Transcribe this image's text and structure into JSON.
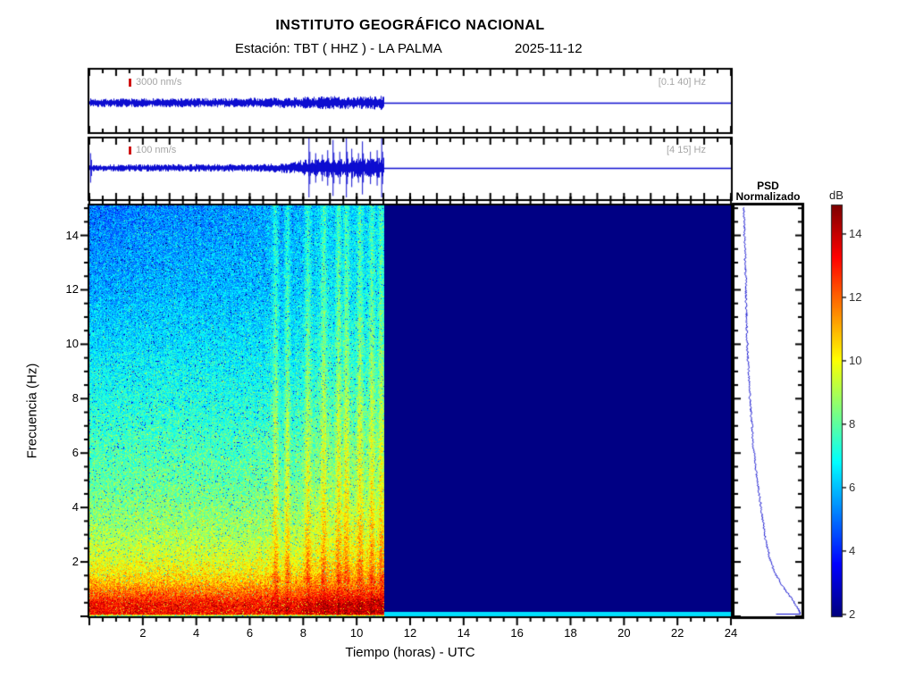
{
  "header": {
    "title": "INSTITUTO GEOGRÁFICO NACIONAL",
    "station": "Estación:  TBT ( HHZ ) - LA PALMA",
    "date": "2025-11-12"
  },
  "colors": {
    "trace": "#0d0dd0",
    "label_gray": "#a6a6a6",
    "marker_red": "#d01414",
    "axis": "#000000",
    "nodata_navy": "#000a8c",
    "background": "#ffffff"
  },
  "chart_data": [
    {
      "id": "waveform_broadband",
      "type": "line",
      "scale_label": "3000 nm/s",
      "filter_label": "[0.1 40] Hz",
      "x_range_hours": [
        0,
        24
      ],
      "data_end_hour": 11,
      "flat_after_end": true,
      "amplitude_profile": [
        [
          0,
          0.11
        ],
        [
          5,
          0.12
        ],
        [
          7,
          0.13
        ],
        [
          8,
          0.15
        ],
        [
          9,
          0.17
        ],
        [
          10,
          0.16
        ],
        [
          10.9,
          0.18
        ],
        [
          11,
          0.16
        ]
      ]
    },
    {
      "id": "waveform_filtered",
      "type": "line",
      "scale_label": "100 nm/s",
      "filter_label": "[4 15] Hz",
      "x_range_hours": [
        0,
        24
      ],
      "data_end_hour": 11,
      "flat_after_end": true,
      "amplitude_profile": [
        [
          0,
          0.09
        ],
        [
          6.5,
          0.1
        ],
        [
          7.5,
          0.14
        ],
        [
          8,
          0.22
        ],
        [
          9,
          0.24
        ],
        [
          10,
          0.26
        ],
        [
          11,
          0.26
        ]
      ],
      "spikes": [
        [
          0.03,
          0.5
        ],
        [
          8.2,
          1.0
        ],
        [
          8.45,
          0.5
        ],
        [
          8.7,
          0.45
        ],
        [
          8.9,
          0.6
        ],
        [
          9.1,
          0.95
        ],
        [
          9.35,
          0.55
        ],
        [
          9.6,
          1.0
        ],
        [
          9.8,
          0.65
        ],
        [
          10.05,
          0.5
        ],
        [
          10.2,
          0.9
        ],
        [
          10.5,
          0.55
        ],
        [
          10.75,
          0.6
        ],
        [
          10.92,
          1.0
        ]
      ]
    },
    {
      "id": "spectrogram",
      "type": "heatmap",
      "xlabel": "Tiempo (horas) - UTC",
      "ylabel": "Frecuencia  (Hz)",
      "x_ticks": [
        2,
        4,
        6,
        8,
        10,
        12,
        14,
        16,
        18,
        20,
        22,
        24
      ],
      "y_ticks": [
        2,
        4,
        6,
        8,
        10,
        12,
        14
      ],
      "x_range_hours": [
        0,
        24
      ],
      "y_range_hz": [
        0,
        15.1
      ],
      "data_end_hour": 11,
      "colormap": "jet",
      "db_range": [
        2,
        15
      ],
      "freq_profile_db": [
        [
          0,
          8.2
        ],
        [
          0.03,
          8.6
        ],
        [
          0.07,
          13.2
        ],
        [
          0.45,
          13.2
        ],
        [
          0.8,
          12.1
        ],
        [
          1.2,
          11.0
        ],
        [
          1.6,
          10.2
        ],
        [
          2.2,
          9.5
        ],
        [
          3,
          8.9
        ],
        [
          4,
          8.4
        ],
        [
          5,
          8.0
        ],
        [
          6.5,
          7.6
        ],
        [
          8,
          7.1
        ],
        [
          10,
          6.5
        ],
        [
          12,
          6.0
        ],
        [
          15.1,
          5.6
        ]
      ],
      "streak_hours": [
        6.95,
        7.4,
        8.15,
        8.75,
        9.3,
        9.6,
        10.1,
        10.55,
        10.9
      ],
      "streak_boost_db": 1.4,
      "late_boost": {
        "from_hour": 7.5,
        "to_hour": 11,
        "db": 0.5
      },
      "upper_left_dim": {
        "before_hour": 7,
        "above_hz": 9,
        "db": -0.6
      },
      "nodata_db": 2,
      "nodata_bottom_line": {
        "below_hz": 0.18,
        "db": 6.4
      }
    },
    {
      "id": "psd_normalized",
      "type": "line",
      "title": [
        "PSD",
        "Normalizado"
      ],
      "points_freq_vs_norm": [
        [
          0.1,
          0.985
        ],
        [
          0.35,
          0.93
        ],
        [
          0.7,
          0.84
        ],
        [
          1.1,
          0.72
        ],
        [
          1.6,
          0.6
        ],
        [
          2.2,
          0.52
        ],
        [
          3,
          0.45
        ],
        [
          4,
          0.4
        ],
        [
          5,
          0.34
        ],
        [
          6,
          0.29
        ],
        [
          8,
          0.23
        ],
        [
          10,
          0.19
        ],
        [
          12,
          0.17
        ],
        [
          14,
          0.15
        ],
        [
          15.1,
          0.14
        ]
      ],
      "bottom_segment_norm": [
        0.62,
        1.0
      ]
    },
    {
      "id": "colorbar",
      "type": "colorbar",
      "label": "dB",
      "ticks": [
        2,
        4,
        6,
        8,
        10,
        12,
        14
      ],
      "range": [
        1.94,
        14.9
      ],
      "colormap": "jet"
    }
  ]
}
